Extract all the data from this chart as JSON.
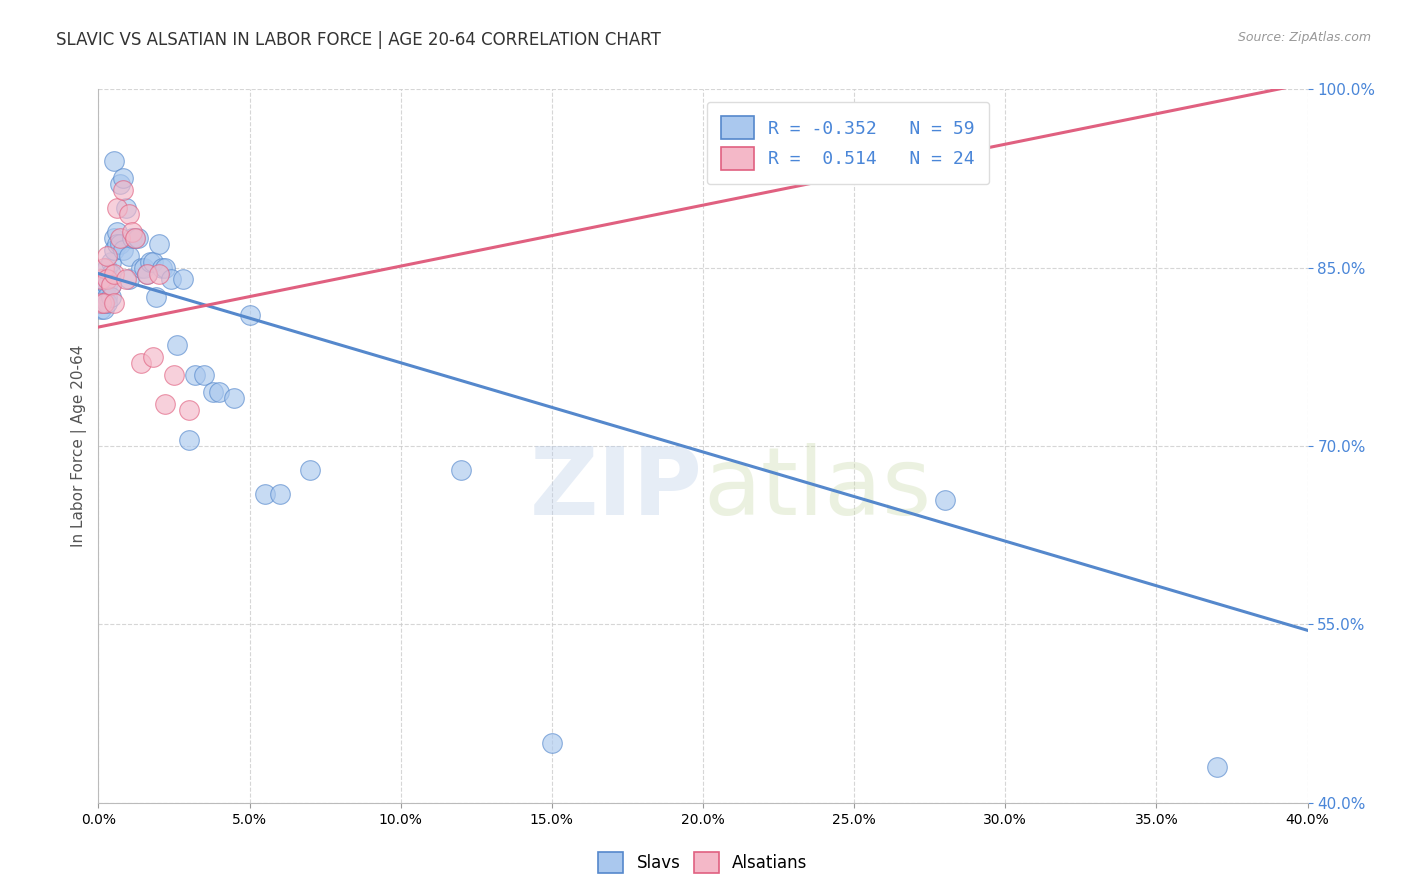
{
  "title": "SLAVIC VS ALSATIAN IN LABOR FORCE | AGE 20-64 CORRELATION CHART",
  "source_text": "Source: ZipAtlas.com",
  "ylabel": "In Labor Force | Age 20-64",
  "xlim": [
    0.0,
    0.4
  ],
  "ylim": [
    0.4,
    1.0
  ],
  "xticks": [
    0.0,
    0.05,
    0.1,
    0.15,
    0.2,
    0.25,
    0.3,
    0.35,
    0.4
  ],
  "yticks": [
    0.4,
    0.55,
    0.7,
    0.85,
    1.0
  ],
  "blue_color": "#aac8ee",
  "pink_color": "#f4b8c8",
  "blue_line_color": "#5588cc",
  "pink_line_color": "#e06080",
  "legend_blue_label": "R = -0.352   N = 59",
  "legend_pink_label": "R =  0.514   N = 24",
  "watermark_zip": "ZIP",
  "watermark_atlas": "atlas",
  "slavs_label": "Slavs",
  "alsatians_label": "Alsatians",
  "blue_dots_x": [
    0.001,
    0.001,
    0.001,
    0.001,
    0.002,
    0.002,
    0.002,
    0.002,
    0.002,
    0.003,
    0.003,
    0.003,
    0.003,
    0.003,
    0.004,
    0.004,
    0.004,
    0.004,
    0.005,
    0.005,
    0.005,
    0.006,
    0.006,
    0.007,
    0.007,
    0.008,
    0.008,
    0.009,
    0.01,
    0.01,
    0.011,
    0.012,
    0.013,
    0.014,
    0.015,
    0.016,
    0.017,
    0.018,
    0.019,
    0.02,
    0.021,
    0.022,
    0.024,
    0.026,
    0.028,
    0.03,
    0.032,
    0.035,
    0.038,
    0.04,
    0.045,
    0.05,
    0.055,
    0.06,
    0.07,
    0.12,
    0.15,
    0.28,
    0.37
  ],
  "blue_dots_y": [
    0.83,
    0.825,
    0.82,
    0.815,
    0.84,
    0.835,
    0.825,
    0.82,
    0.815,
    0.85,
    0.84,
    0.835,
    0.825,
    0.82,
    0.855,
    0.845,
    0.835,
    0.825,
    0.94,
    0.875,
    0.865,
    0.88,
    0.87,
    0.92,
    0.87,
    0.925,
    0.865,
    0.9,
    0.86,
    0.84,
    0.875,
    0.875,
    0.875,
    0.85,
    0.85,
    0.845,
    0.855,
    0.855,
    0.825,
    0.87,
    0.85,
    0.85,
    0.84,
    0.785,
    0.84,
    0.705,
    0.76,
    0.76,
    0.745,
    0.745,
    0.74,
    0.81,
    0.66,
    0.66,
    0.68,
    0.68,
    0.45,
    0.655,
    0.43
  ],
  "pink_dots_x": [
    0.001,
    0.001,
    0.002,
    0.002,
    0.003,
    0.003,
    0.004,
    0.005,
    0.005,
    0.006,
    0.007,
    0.008,
    0.009,
    0.01,
    0.011,
    0.012,
    0.014,
    0.016,
    0.018,
    0.02,
    0.022,
    0.025,
    0.03,
    0.21
  ],
  "pink_dots_y": [
    0.84,
    0.82,
    0.85,
    0.82,
    0.86,
    0.84,
    0.835,
    0.845,
    0.82,
    0.9,
    0.875,
    0.915,
    0.84,
    0.895,
    0.88,
    0.875,
    0.77,
    0.845,
    0.775,
    0.845,
    0.735,
    0.76,
    0.73,
    0.93
  ],
  "blue_trend_x": [
    0.0,
    0.4
  ],
  "blue_trend_y": [
    0.845,
    0.545
  ],
  "pink_trend_x": [
    0.0,
    0.4
  ],
  "pink_trend_y": [
    0.8,
    1.005
  ],
  "grid_color": "#cccccc",
  "background_color": "#ffffff",
  "title_fontsize": 12,
  "axis_label_fontsize": 11,
  "tick_fontsize": 10,
  "legend_fontsize": 12
}
